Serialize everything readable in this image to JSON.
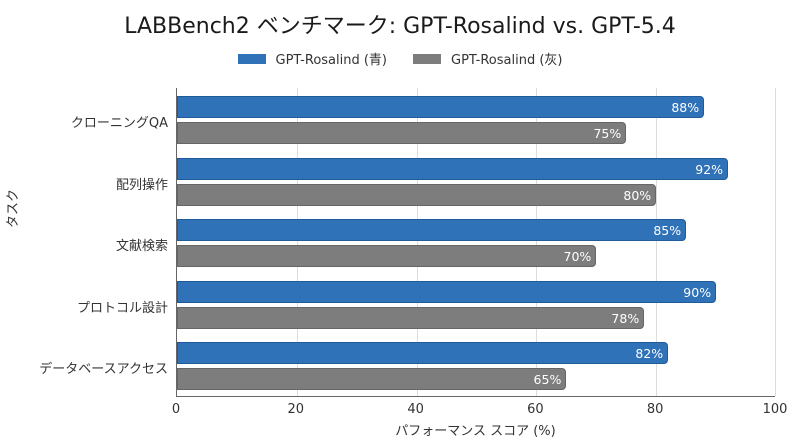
{
  "chart_data": {
    "type": "bar",
    "orientation": "horizontal",
    "title": "LABBench2 ベンチマーク: GPT-Rosalind vs. GPT-5.4",
    "xlabel": "パフォーマンス スコア (%)",
    "ylabel": "タスク",
    "xlim": [
      0,
      100
    ],
    "xticks": [
      "0",
      "20",
      "40",
      "60",
      "80",
      "100"
    ],
    "grid": "vertical",
    "legend_position": "top-center",
    "categories": [
      "クローニングQA",
      "配列操作",
      "文献検索",
      "プロトコル設計",
      "データベースアクセス"
    ],
    "series": [
      {
        "name": "GPT-Rosalind (青)",
        "color": "#2f72b8",
        "values": [
          88,
          92,
          85,
          90,
          82
        ],
        "labels": [
          "88%",
          "92%",
          "85%",
          "90%",
          "82%"
        ]
      },
      {
        "name": "GPT-Rosalind (灰)",
        "color": "#7d7d7d",
        "values": [
          75,
          80,
          70,
          78,
          65
        ],
        "labels": [
          "75%",
          "80%",
          "70%",
          "78%",
          "65%"
        ]
      }
    ]
  }
}
